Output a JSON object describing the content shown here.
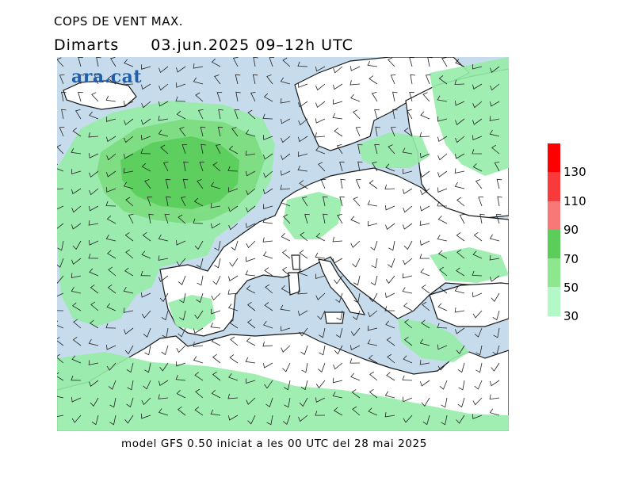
{
  "header": {
    "title": "COPS DE VENT MAX.",
    "day": "Dimarts",
    "datetime": "03.jun.2025 09–12h UTC"
  },
  "logo": {
    "text": "ara.cat",
    "color": "#1f5fae"
  },
  "footer": {
    "text": "model GFS 0.50 iniciat a les 00 UTC del 28 mai 2025"
  },
  "legend": {
    "colors": [
      "#ff0000",
      "#f83a3a",
      "#f87878",
      "#5acd5a",
      "#8ee68e",
      "#b4f8c8"
    ],
    "labels": [
      "130",
      "110",
      "90",
      "70",
      "50",
      "30"
    ]
  },
  "map": {
    "sea_color": "#c6dcec",
    "land_color": "#ffffff",
    "wind_30_color": "#96eca8",
    "wind_50_color": "#7cdc80",
    "wind_70_color": "#5acd5a"
  }
}
